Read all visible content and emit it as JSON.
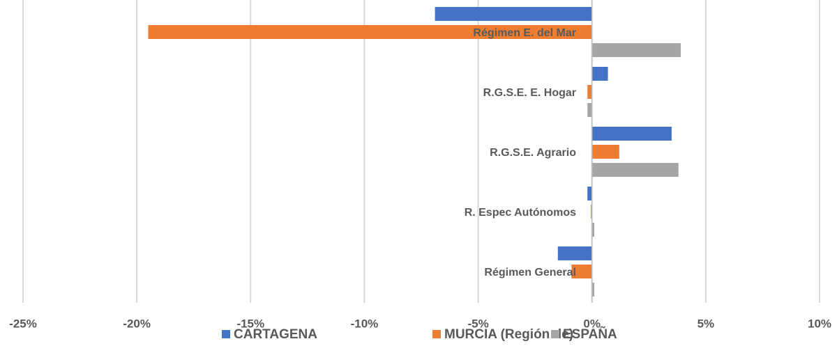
{
  "chart_data": {
    "type": "hbar",
    "categories": [
      "Régimen General",
      "R. Espec  Autónomos",
      "R.G.S.E. Agrario",
      "R.G.S.E. E. Hogar",
      "Régimen E. del Mar"
    ],
    "series": [
      {
        "name": "CARTAGENA",
        "color": "#4472c4",
        "values": [
          -1.5,
          -0.2,
          3.5,
          0.7,
          -6.9
        ]
      },
      {
        "name": "MURCIA (Región de)",
        "color": "#ed7d31",
        "values": [
          -0.9,
          -0.05,
          1.2,
          -0.2,
          -19.5
        ]
      },
      {
        "name": "ESPAÑA",
        "color": "#a5a5a5",
        "values": [
          0.1,
          0.1,
          3.8,
          -0.2,
          3.9
        ]
      }
    ],
    "xlim": [
      -25,
      10
    ],
    "xticks": [
      {
        "value": -25,
        "label": "-25%"
      },
      {
        "value": -20,
        "label": "-20%"
      },
      {
        "value": -15,
        "label": "-15%"
      },
      {
        "value": -10,
        "label": "-10%"
      },
      {
        "value": -5,
        "label": "-5%"
      },
      {
        "value": 0,
        "label": "0%"
      },
      {
        "value": 5,
        "label": "5%"
      },
      {
        "value": 10,
        "label": "10%"
      }
    ],
    "grid": true
  }
}
